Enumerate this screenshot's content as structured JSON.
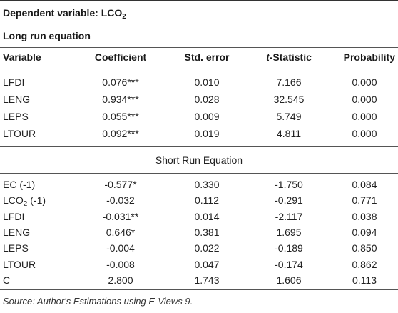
{
  "title": {
    "text": "Dependent variable: LCO",
    "sub": "2"
  },
  "long_run": {
    "heading": "Long run equation",
    "columns": {
      "variable": "Variable",
      "coefficient": "Coefficient",
      "std_error": "Std. error",
      "t_italic": "t",
      "t_rest": "-Statistic",
      "probability": "Probability"
    },
    "rows": [
      {
        "var": "LFDI",
        "coef": "0.076***",
        "se": "0.010",
        "t": "7.166",
        "p": "0.000"
      },
      {
        "var": "LENG",
        "coef": "0.934***",
        "se": "0.028",
        "t": "32.545",
        "p": "0.000"
      },
      {
        "var": "LEPS",
        "coef": "0.055***",
        "se": "0.009",
        "t": "5.749",
        "p": "0.000"
      },
      {
        "var": "LTOUR",
        "coef": "0.092***",
        "se": "0.019",
        "t": "4.811",
        "p": "0.000"
      }
    ]
  },
  "short_run": {
    "heading": "Short Run Equation",
    "rows": [
      {
        "var": "EC (-1)",
        "coef": "-0.577*",
        "se": "0.330",
        "t": "-1.750",
        "p": "0.084"
      },
      {
        "var": "LCO",
        "var_sub": "2",
        "var_suffix": " (-1)",
        "coef": "-0.032",
        "se": "0.112",
        "t": "-0.291",
        "p": "0.771"
      },
      {
        "var": "LFDI",
        "coef": "-0.031**",
        "se": "0.014",
        "t": "-2.117",
        "p": "0.038"
      },
      {
        "var": "LENG",
        "coef": "0.646*",
        "se": "0.381",
        "t": "1.695",
        "p": "0.094"
      },
      {
        "var": "LEPS",
        "coef": "-0.004",
        "se": "0.022",
        "t": "-0.189",
        "p": "0.850"
      },
      {
        "var": "LTOUR",
        "coef": "-0.008",
        "se": "0.047",
        "t": "-0.174",
        "p": "0.862"
      },
      {
        "var": "C",
        "coef": "2.800",
        "se": "1.743",
        "t": "1.606",
        "p": "0.113"
      }
    ]
  },
  "source": "Source: Author's Estimations using E-Views 9."
}
